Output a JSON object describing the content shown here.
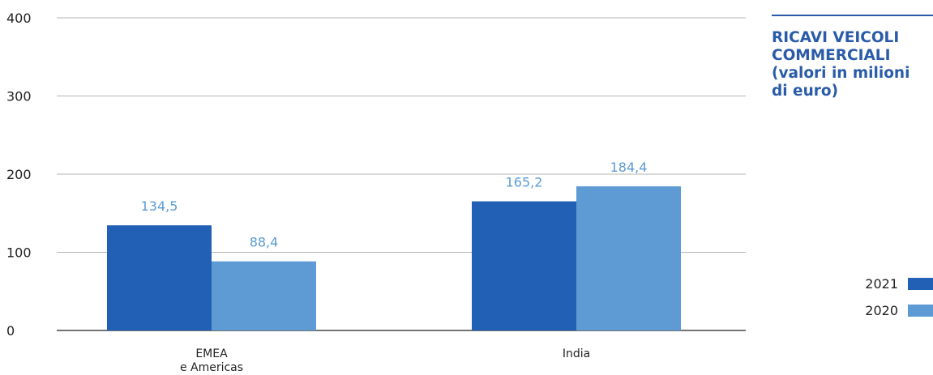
{
  "chart_data": {
    "type": "bar",
    "title_lines": [
      "RICAVI VEICOLI",
      "COMMERCIALI",
      "(valori in milioni",
      "di euro)"
    ],
    "categories": [
      {
        "lines": [
          "EMEA",
          "e Americas"
        ]
      },
      {
        "lines": [
          "India"
        ]
      }
    ],
    "series": [
      {
        "name": "2021",
        "color": "#2160b5",
        "values": [
          134.5,
          165.2
        ],
        "labels": [
          "134,5",
          "165,2"
        ]
      },
      {
        "name": "2020",
        "color": "#5e9bd4",
        "values": [
          88.4,
          184.4
        ],
        "labels": [
          "88,4",
          "184,4"
        ]
      }
    ],
    "yticks": [
      "0",
      "100",
      "200",
      "300",
      "400"
    ],
    "ylim": [
      0,
      400
    ],
    "grid": true,
    "legend_position": "bottom-right"
  }
}
